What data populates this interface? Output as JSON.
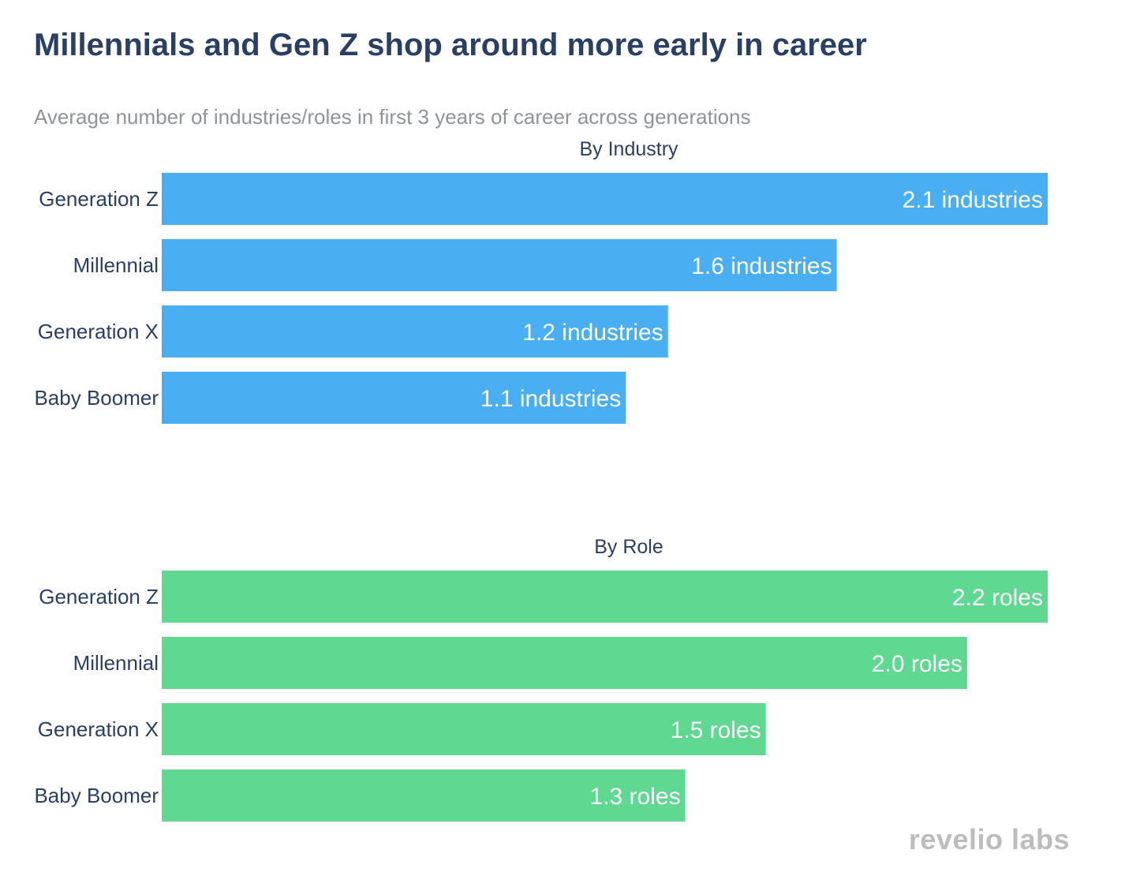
{
  "chart_data": {
    "title": "Millennials and Gen Z shop around more early in career",
    "subtitle": "Average number of industries/roles in first 3 years of career across generations",
    "brand": "revelio labs",
    "panels": [
      {
        "type": "bar",
        "orientation": "horizontal",
        "title": "By Industry",
        "color": "#4aaef2",
        "categories": [
          "Generation Z",
          "Millennial",
          "Generation X",
          "Baby Boomer"
        ],
        "values": [
          2.1,
          1.6,
          1.2,
          1.1
        ],
        "labels": [
          "2.1 industries",
          "1.6 industries",
          "1.2 industries",
          "1.1 industries"
        ],
        "xlim": [
          0,
          2.1
        ]
      },
      {
        "type": "bar",
        "orientation": "horizontal",
        "title": "By Role",
        "color": "#5fd991",
        "categories": [
          "Generation Z",
          "Millennial",
          "Generation X",
          "Baby Boomer"
        ],
        "values": [
          2.2,
          2.0,
          1.5,
          1.3
        ],
        "labels": [
          "2.2 roles",
          "2.0 roles",
          "1.5 roles",
          "1.3 roles"
        ],
        "xlim": [
          0,
          2.2
        ]
      }
    ]
  }
}
